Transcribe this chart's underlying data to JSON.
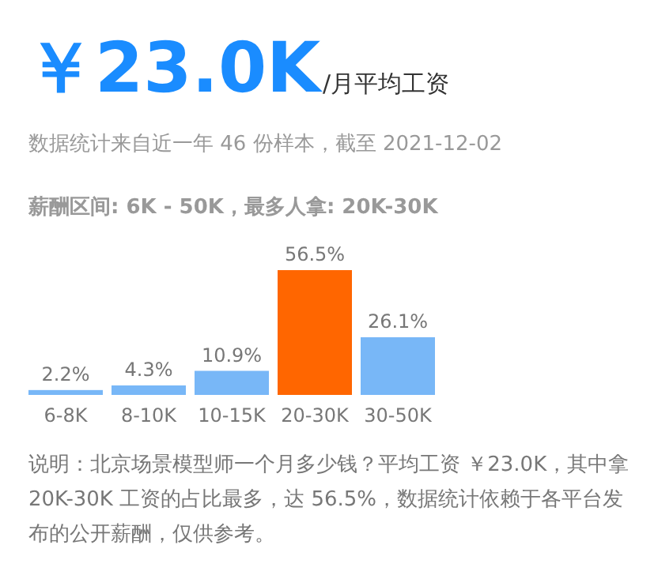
{
  "chart_data": {
    "type": "bar",
    "title": "￥23.0K",
    "subtitle": "/月平均工资",
    "annotations": [
      "数据统计来自近一年 46 份样本，截至 2021-12-02",
      "薪酬区间: 6K - 50K，最多人拿: 20K-30K",
      "说明：北京场景模型师一个月多少钱？平均工资 ￥23.0K，其中拿 20K-30K 工资的占比最多，达 56.5%，数据统计依赖于各平台发布的公开薪酬，仅供参考。"
    ],
    "categories": [
      "6-8K",
      "8-10K",
      "10-15K",
      "20-30K",
      "30-50K"
    ],
    "values": [
      2.2,
      4.3,
      10.9,
      56.5,
      26.1
    ],
    "colors": [
      "#78b7f7",
      "#78b7f7",
      "#78b7f7",
      "#ff6600",
      "#78b7f7"
    ],
    "value_labels": [
      "2.2%",
      "4.3%",
      "10.9%",
      "56.5%",
      "26.1%"
    ]
  }
}
